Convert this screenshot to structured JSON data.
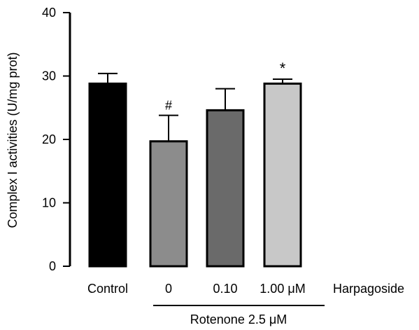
{
  "chart_data": {
    "type": "bar",
    "categories": [
      "Control",
      "0",
      "0.10",
      "1.00 μM"
    ],
    "values": [
      28.8,
      19.7,
      24.6,
      28.8
    ],
    "errors": [
      1.6,
      4.1,
      3.4,
      0.7
    ],
    "bar_colors": [
      "#000000",
      "#8c8c8c",
      "#6a6a6a",
      "#c8c8c8"
    ],
    "annotations": [
      "",
      "#",
      "",
      "*"
    ],
    "ylabel": "Complex I activities (U/mg prot)",
    "ylim": [
      0,
      40
    ],
    "yticks": [
      0,
      10,
      20,
      30,
      40
    ],
    "series_label": "Harpagoside",
    "group_label": "Rotenone 2.5 μM",
    "grid": false
  }
}
